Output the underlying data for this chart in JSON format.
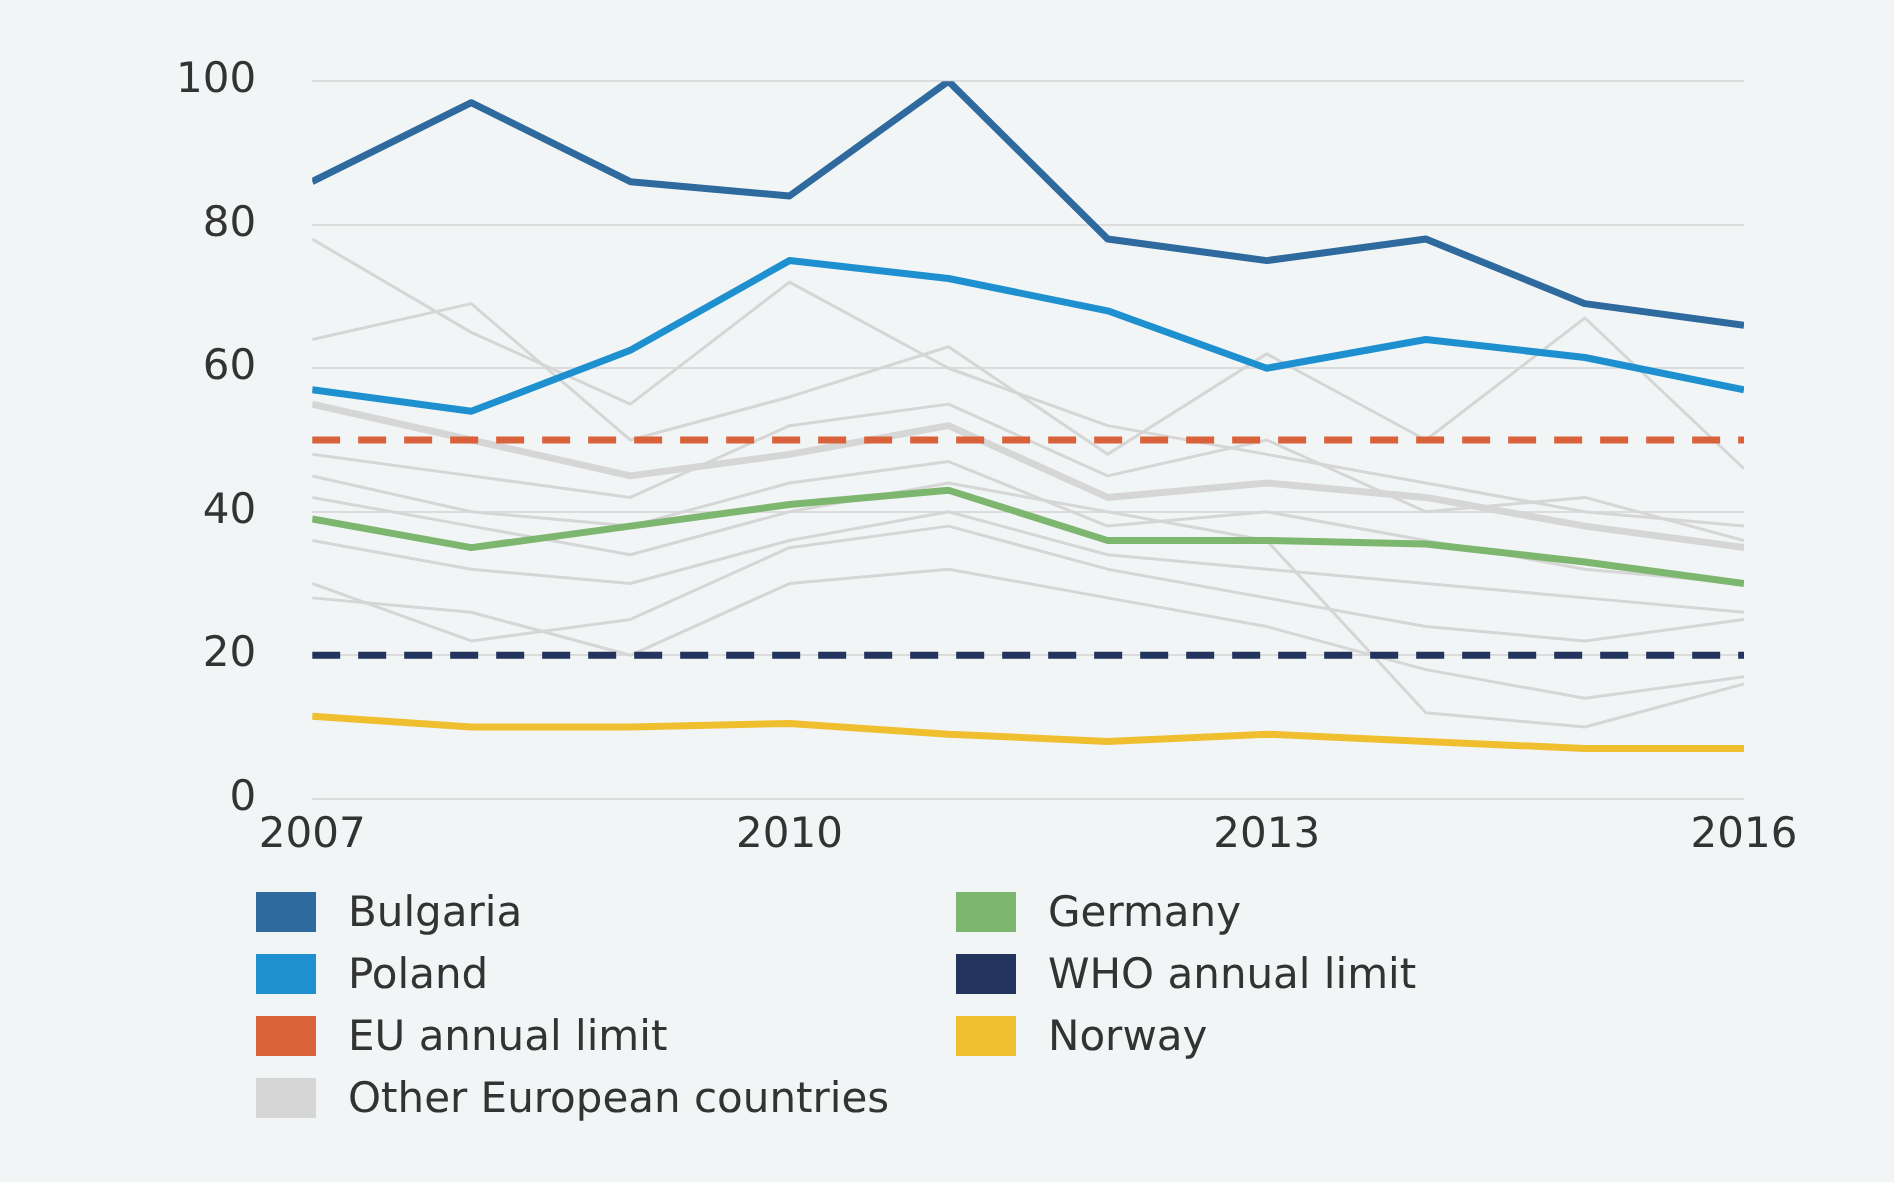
{
  "chart_data": {
    "type": "line",
    "x": [
      2007,
      2008,
      2009,
      2010,
      2011,
      2012,
      2013,
      2014,
      2015,
      2016
    ],
    "xlim": [
      2007,
      2016
    ],
    "xticks": [
      2007,
      2010,
      2013,
      2016
    ],
    "ylim": [
      0,
      100
    ],
    "yticks": [
      0,
      20,
      40,
      60,
      80,
      100
    ],
    "grid": "y",
    "legend": "bottom",
    "marker": "none",
    "line_style": "solid",
    "series": [
      {
        "name": "Bulgaria",
        "color": "#2e6a9e",
        "values": [
          86,
          97,
          86,
          84,
          100,
          78,
          75,
          78,
          69,
          66
        ]
      },
      {
        "name": "Poland",
        "color": "#1e90d0",
        "values": [
          57,
          54,
          62.5,
          75,
          72.5,
          68,
          60,
          64,
          61.5,
          57
        ]
      },
      {
        "name": "EU annual limit",
        "color": "#d9623b",
        "line_style": "dashed",
        "values": [
          50,
          50,
          50,
          50,
          50,
          50,
          50,
          50,
          50,
          50
        ]
      },
      {
        "name": "Other European countries",
        "color": "#d6d6d6",
        "values": [
          55,
          50,
          45,
          48,
          52,
          42,
          44,
          42,
          38,
          35
        ]
      },
      {
        "name": "Germany",
        "color": "#7db66f",
        "values": [
          39,
          35,
          38,
          41,
          43,
          36,
          36,
          35.5,
          33,
          30
        ]
      },
      {
        "name": "WHO annual limit",
        "color": "#22335e",
        "line_style": "dashed",
        "values": [
          20,
          20,
          20,
          20,
          20,
          20,
          20,
          20,
          20,
          20
        ]
      },
      {
        "name": "Norway",
        "color": "#f0bf30",
        "values": [
          11.5,
          10,
          10,
          10.5,
          9,
          8,
          9,
          8,
          7,
          7
        ]
      },
      {
        "color": "#d6d6d6",
        "values": [
          78,
          65,
          55,
          72,
          60,
          52,
          48,
          44,
          40,
          38
        ]
      },
      {
        "color": "#d6d6d6",
        "values": [
          64,
          69,
          50,
          56,
          63,
          48,
          62,
          50,
          67,
          46
        ]
      },
      {
        "color": "#d6d6d6",
        "values": [
          48,
          45,
          42,
          52,
          55,
          45,
          50,
          40,
          42,
          36
        ]
      },
      {
        "color": "#d6d6d6",
        "values": [
          45,
          40,
          38,
          44,
          47,
          38,
          40,
          36,
          32,
          30
        ]
      },
      {
        "color": "#d6d6d6",
        "values": [
          30,
          22,
          25,
          35,
          38,
          32,
          28,
          24,
          22,
          25
        ]
      },
      {
        "color": "#d6d6d6",
        "values": [
          28,
          26,
          20,
          30,
          32,
          28,
          24,
          18,
          14,
          17
        ]
      },
      {
        "color": "#d6d6d6",
        "values": [
          42,
          38,
          34,
          40,
          44,
          40,
          36,
          12,
          10,
          16
        ]
      },
      {
        "color": "#d6d6d6",
        "values": [
          36,
          32,
          30,
          36,
          40,
          34,
          32,
          30,
          28,
          26
        ]
      }
    ]
  }
}
